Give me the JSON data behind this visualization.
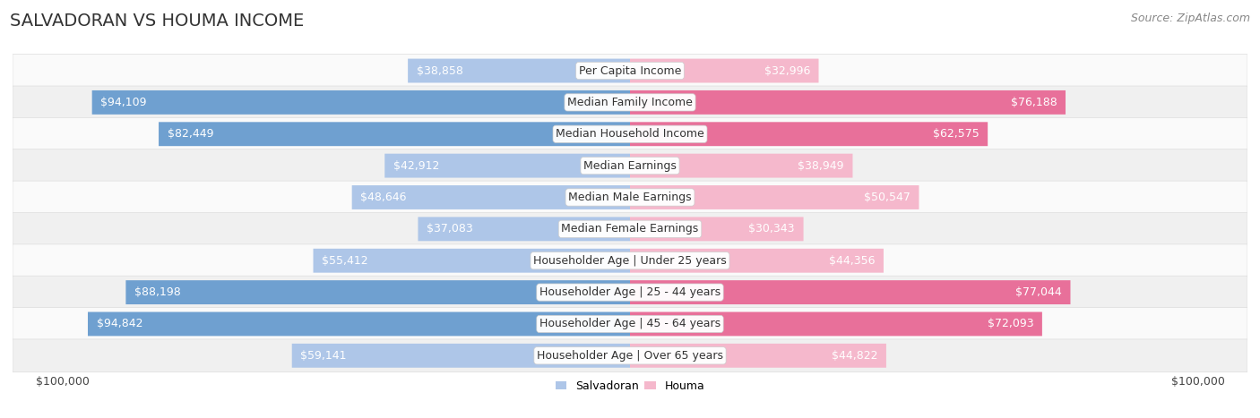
{
  "title": "SALVADORAN VS HOUMA INCOME",
  "source": "Source: ZipAtlas.com",
  "categories": [
    "Per Capita Income",
    "Median Family Income",
    "Median Household Income",
    "Median Earnings",
    "Median Male Earnings",
    "Median Female Earnings",
    "Householder Age | Under 25 years",
    "Householder Age | 25 - 44 years",
    "Householder Age | 45 - 64 years",
    "Householder Age | Over 65 years"
  ],
  "salvadoran_values": [
    38858,
    94109,
    82449,
    42912,
    48646,
    37083,
    55412,
    88198,
    94842,
    59141
  ],
  "houma_values": [
    32996,
    76188,
    62575,
    38949,
    50547,
    30343,
    44356,
    77044,
    72093,
    44822
  ],
  "max_value": 100000,
  "salvadoran_color_light": "#aec6e8",
  "salvadoran_color_dark": "#6fa0d0",
  "houma_color_light": "#f5b8cc",
  "houma_color_dark": "#e8709a",
  "bg_color": "#ffffff",
  "row_bg_light": "#f0f0f0",
  "row_bg_white": "#fafafa",
  "x_label_left": "$100,000",
  "x_label_right": "$100,000",
  "legend_salvadoran": "Salvadoran",
  "legend_houma": "Houma",
  "title_fontsize": 14,
  "source_fontsize": 9,
  "bar_label_fontsize": 9,
  "cat_label_fontsize": 9,
  "axis_label_fontsize": 9,
  "white_label_threshold": 20000
}
